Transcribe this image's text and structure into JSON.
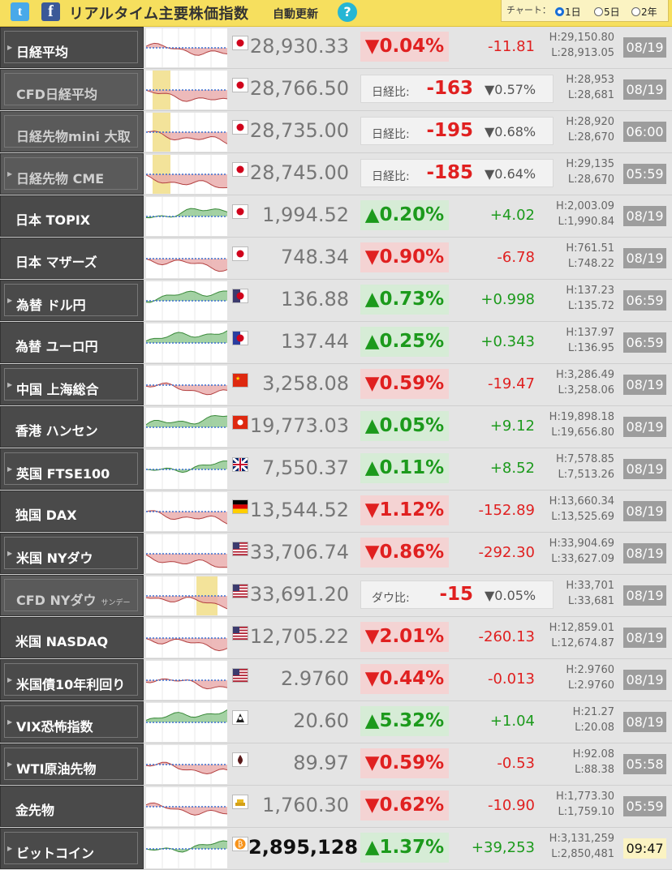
{
  "header": {
    "twitter_icon": "twitter-icon",
    "facebook_icon": "facebook-icon",
    "title": "リアルタイム主要株価指数",
    "auto_update": "自動更新",
    "help": "?",
    "chart_label": "チャート：",
    "options": [
      "1日",
      "5日",
      "2年"
    ],
    "selected_option": "1日"
  },
  "rows": [
    {
      "name": "日経平均",
      "sub": "",
      "price": "28,930.33",
      "change": "▼0.04%",
      "dir": "dn",
      "diff": "-11.81",
      "high": "H:29,150.80",
      "low": "L:28,913.05",
      "time": "08/19",
      "flag": "jp",
      "style": "box"
    },
    {
      "name": "CFD日経平均",
      "sub": "",
      "price": "28,766.50",
      "cfd_label": "日経比:",
      "cfd_value": "-163",
      "cfd_pct": "▼0.57%",
      "dir": "dn",
      "high": "H:28,953",
      "low": "L:28,681",
      "time": "08/19",
      "flag": "jp",
      "style": "cfd"
    },
    {
      "name": "日経先物mini 大取",
      "sub": "",
      "price": "28,735.00",
      "cfd_label": "日経比:",
      "cfd_value": "-195",
      "cfd_pct": "▼0.68%",
      "dir": "dn",
      "high": "H:28,920",
      "low": "L:28,670",
      "time": "06:00",
      "flag": "jp",
      "style": "cfd"
    },
    {
      "name": "日経先物 CME",
      "sub": "",
      "price": "28,745.00",
      "cfd_label": "日経比:",
      "cfd_value": "-185",
      "cfd_pct": "▼0.64%",
      "dir": "dn",
      "high": "H:29,135",
      "low": "L:28,670",
      "time": "05:59",
      "flag": "jp",
      "style": "cfdbox"
    },
    {
      "name": "日本 TOPIX",
      "sub": "",
      "price": "1,994.52",
      "change": "▲0.20%",
      "dir": "up",
      "diff": "+4.02",
      "high": "H:2,003.09",
      "low": "L:1,990.84",
      "time": "08/19",
      "flag": "jp",
      "style": "plain"
    },
    {
      "name": "日本 マザーズ",
      "sub": "",
      "price": "748.34",
      "change": "▼0.90%",
      "dir": "dn",
      "diff": "-6.78",
      "high": "H:761.51",
      "low": "L:748.22",
      "time": "08/19",
      "flag": "jp",
      "style": "plain"
    },
    {
      "name": "為替 ドル円",
      "sub": "",
      "price": "136.88",
      "change": "▲0.73%",
      "dir": "up",
      "diff": "+0.998",
      "high": "H:137.23",
      "low": "L:135.72",
      "time": "06:59",
      "flag": "usjp",
      "style": "box"
    },
    {
      "name": "為替 ユーロ円",
      "sub": "",
      "price": "137.44",
      "change": "▲0.25%",
      "dir": "up",
      "diff": "+0.343",
      "high": "H:137.97",
      "low": "L:136.95",
      "time": "06:59",
      "flag": "eujp",
      "style": "plain"
    },
    {
      "name": "中国 上海総合",
      "sub": "",
      "price": "3,258.08",
      "change": "▼0.59%",
      "dir": "dn",
      "diff": "-19.47",
      "high": "H:3,286.49",
      "low": "L:3,258.06",
      "time": "08/19",
      "flag": "cn",
      "style": "box"
    },
    {
      "name": "香港 ハンセン",
      "sub": "",
      "price": "19,773.03",
      "change": "▲0.05%",
      "dir": "up",
      "diff": "+9.12",
      "high": "H:19,898.18",
      "low": "L:19,656.80",
      "time": "08/19",
      "flag": "hk",
      "style": "plain"
    },
    {
      "name": "英国 FTSE100",
      "sub": "",
      "price": "7,550.37",
      "change": "▲0.11%",
      "dir": "up",
      "diff": "+8.52",
      "high": "H:7,578.85",
      "low": "L:7,513.26",
      "time": "08/19",
      "flag": "uk",
      "style": "box"
    },
    {
      "name": "独国 DAX",
      "sub": "",
      "price": "13,544.52",
      "change": "▼1.12%",
      "dir": "dn",
      "diff": "-152.89",
      "high": "H:13,660.34",
      "low": "L:13,525.69",
      "time": "08/19",
      "flag": "de",
      "style": "plain"
    },
    {
      "name": "米国 NYダウ",
      "sub": "",
      "price": "33,706.74",
      "change": "▼0.86%",
      "dir": "dn",
      "diff": "-292.30",
      "high": "H:33,904.69",
      "low": "L:33,627.09",
      "time": "08/19",
      "flag": "us",
      "style": "box"
    },
    {
      "name": "CFD NYダウ",
      "sub": "サンデー",
      "price": "33,691.20",
      "cfd_label": "ダウ比:",
      "cfd_value": "-15",
      "cfd_pct": "▼0.05%",
      "dir": "dn",
      "high": "H:33,701",
      "low": "L:33,681",
      "time": "08/19",
      "flag": "us",
      "style": "cfd"
    },
    {
      "name": "米国 NASDAQ",
      "sub": "",
      "price": "12,705.22",
      "change": "▼2.01%",
      "dir": "dn",
      "diff": "-260.13",
      "high": "H:12,859.01",
      "low": "L:12,674.87",
      "time": "08/19",
      "flag": "us",
      "style": "plain"
    },
    {
      "name": "米国債10年利回り",
      "sub": "",
      "price": "2.9760",
      "change": "▼0.44%",
      "dir": "dn",
      "diff": "-0.013",
      "high": "H:2.9760",
      "low": "L:2.9760",
      "time": "08/19",
      "flag": "us",
      "style": "box"
    },
    {
      "name": "VIX恐怖指数",
      "sub": "",
      "price": "20.60",
      "change": "▲5.32%",
      "dir": "up",
      "diff": "+1.04",
      "high": "H:21.27",
      "low": "L:20.08",
      "time": "08/19",
      "flag": "vix",
      "style": "box"
    },
    {
      "name": "WTI原油先物",
      "sub": "",
      "price": "89.97",
      "change": "▼0.59%",
      "dir": "dn",
      "diff": "-0.53",
      "high": "H:92.08",
      "low": "L:88.38",
      "time": "05:58",
      "flag": "oil",
      "style": "box"
    },
    {
      "name": "金先物",
      "sub": "",
      "price": "1,760.30",
      "change": "▼0.62%",
      "dir": "dn",
      "diff": "-10.90",
      "high": "H:1,773.30",
      "low": "L:1,759.10",
      "time": "05:59",
      "flag": "gold",
      "style": "plain"
    },
    {
      "name": "ビットコイン",
      "sub": "",
      "price": "2,895,128",
      "change": "▲1.37%",
      "dir": "up",
      "diff": "+39,253",
      "high": "H:3,131,259",
      "low": "L:2,850,481",
      "time": "09:47",
      "flag": "btc",
      "style": "box",
      "highlight": true
    }
  ],
  "colors": {
    "up": "#1c9a1c",
    "down": "#e02020",
    "header": "#f6df5e"
  }
}
